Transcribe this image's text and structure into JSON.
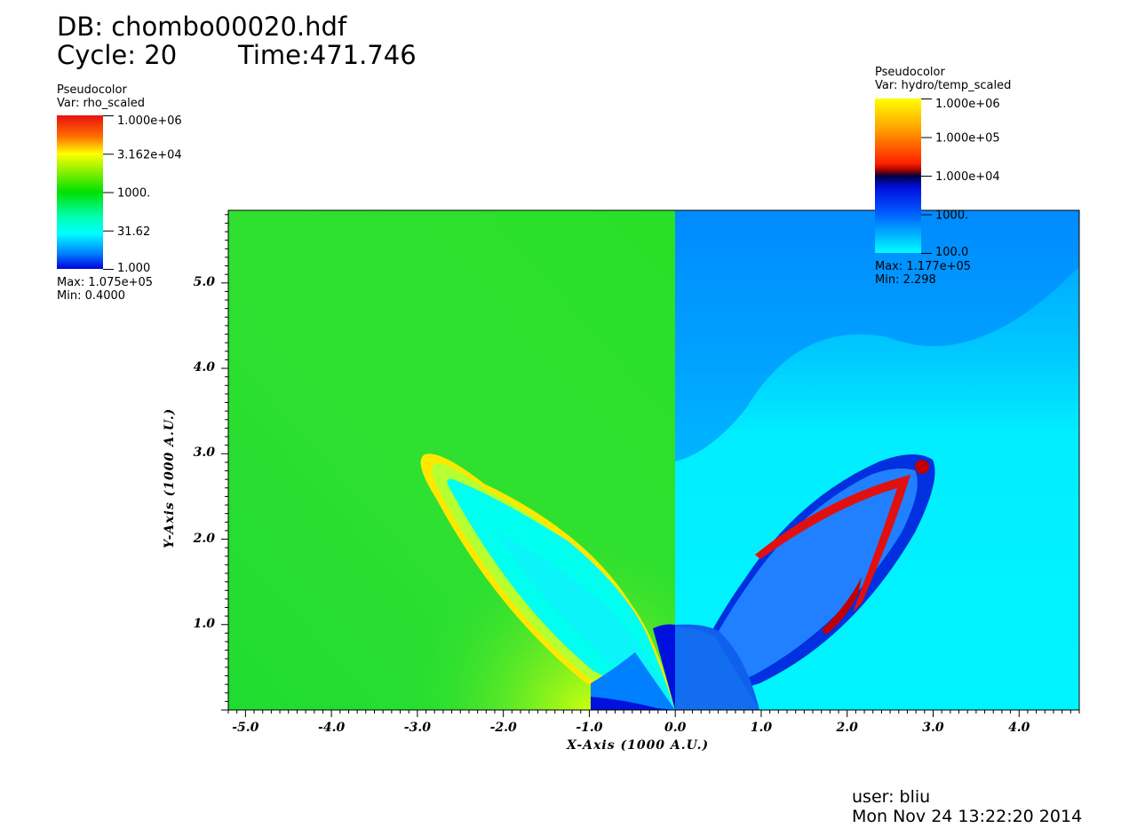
{
  "header": {
    "db": "DB: chombo00020.hdf",
    "cycle": "Cycle: 20",
    "time": "Time:471.746"
  },
  "legend_left": {
    "plot_type": "Pseudocolor",
    "var": "Var: rho_scaled",
    "ticks": [
      "1.000e+06",
      "3.162e+04",
      "1000.",
      "31.62",
      "1.000"
    ],
    "max": "Max:  1.075e+05",
    "min": "Min:  0.4000",
    "colors": [
      "#e81010",
      "#ffa000",
      "#ffff00",
      "#00e000",
      "#00ffc0",
      "#00ffff",
      "#0050ff",
      "#0000dd"
    ]
  },
  "legend_right": {
    "plot_type": "Pseudocolor",
    "var": "Var: hydro/temp_scaled",
    "ticks": [
      "1.000e+06",
      "1.000e+05",
      "1.000e+04",
      "1000.",
      "100.0"
    ],
    "max": "Max:  1.177e+05",
    "min": "Min:  2.298",
    "colors": [
      "#ffff00",
      "#ff9000",
      "#ff3000",
      "#c00000",
      "#000040",
      "#0020ff",
      "#0080ff",
      "#00ffff"
    ]
  },
  "chart_data": {
    "type": "heatmap",
    "title": "",
    "xlabel": "X-Axis (1000 A.U.)",
    "ylabel": "Y-Axis (1000 A.U.)",
    "xlim": [
      -5.2,
      4.7
    ],
    "ylim": [
      0,
      5.85
    ],
    "x_ticks": [
      "-5.0",
      "-4.0",
      "-3.0",
      "-2.0",
      "-1.0",
      "0.0",
      "1.0",
      "2.0",
      "3.0",
      "4.0"
    ],
    "y_ticks": [
      "1.0",
      "2.0",
      "3.0",
      "4.0",
      "5.0"
    ],
    "fields": [
      {
        "name": "rho_scaled",
        "region": "x < 0",
        "background": "#30e030"
      },
      {
        "name": "hydro/temp_scaled",
        "region": "x > 0",
        "background": "#00eeff"
      }
    ],
    "features": {
      "lobe_left_tip": [
        -2.9,
        2.95
      ],
      "lobe_right_tip": [
        2.95,
        2.85
      ],
      "core_radius": 1.0
    }
  },
  "footer": {
    "user": "user: bliu",
    "date": "Mon Nov 24 13:22:20 2014"
  }
}
